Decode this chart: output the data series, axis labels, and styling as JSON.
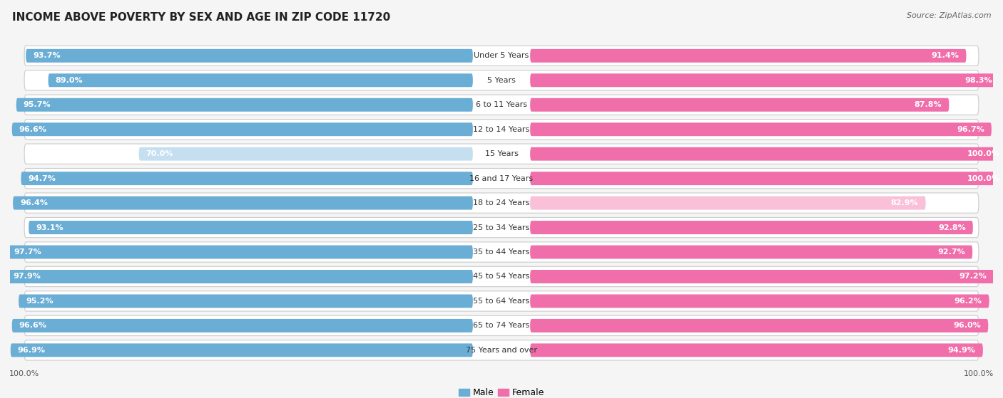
{
  "title": "INCOME ABOVE POVERTY BY SEX AND AGE IN ZIP CODE 11720",
  "source": "Source: ZipAtlas.com",
  "categories": [
    "Under 5 Years",
    "5 Years",
    "6 to 11 Years",
    "12 to 14 Years",
    "15 Years",
    "16 and 17 Years",
    "18 to 24 Years",
    "25 to 34 Years",
    "35 to 44 Years",
    "45 to 54 Years",
    "55 to 64 Years",
    "65 to 74 Years",
    "75 Years and over"
  ],
  "male_values": [
    93.7,
    89.0,
    95.7,
    96.6,
    70.0,
    94.7,
    96.4,
    93.1,
    97.7,
    97.9,
    95.2,
    96.6,
    96.9
  ],
  "female_values": [
    91.4,
    98.3,
    87.8,
    96.7,
    100.0,
    100.0,
    82.9,
    92.8,
    92.7,
    97.2,
    96.2,
    96.0,
    94.9
  ],
  "male_color": "#6aadd5",
  "female_color": "#f06eaa",
  "male_color_light": "#c5dff0",
  "female_color_light": "#f9c0d8",
  "row_bg_color": "#e8e8e8",
  "background_color": "#f5f5f5",
  "title_fontsize": 11,
  "label_fontsize": 8,
  "cat_fontsize": 8,
  "tick_fontsize": 8,
  "source_fontsize": 8
}
